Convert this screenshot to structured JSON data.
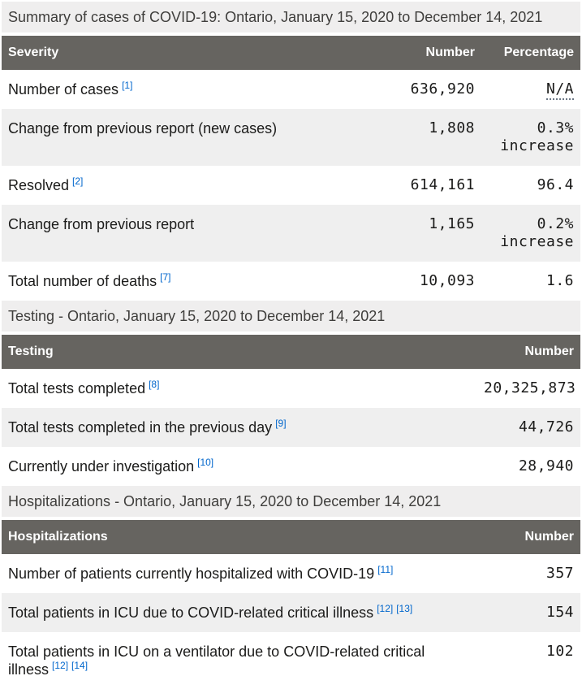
{
  "colors": {
    "header_bg": "#666460",
    "header_text": "#ffffff",
    "zebra_bg": "#efefef",
    "caption_bg": "#efeeee",
    "caption_text": "#3f3e3c",
    "body_text": "#1b1b1a",
    "link": "#0066cc"
  },
  "tables": [
    {
      "caption": "Summary of cases of COVID-19: Ontario, January 15, 2020 to December 14, 2021",
      "columns": [
        "Severity",
        "Number",
        "Percentage"
      ],
      "rows": [
        {
          "label": "Number of cases",
          "footnotes": [
            "[1]"
          ],
          "number": "636,920",
          "percentage": "N/A"
        },
        {
          "label": "Change from previous report (new cases)",
          "footnotes": [],
          "number": "1,808",
          "percentage": "0.3% increase"
        },
        {
          "label": "Resolved",
          "footnotes": [
            "[2]"
          ],
          "number": "614,161",
          "percentage": "96.4"
        },
        {
          "label": "Change from previous report",
          "footnotes": [],
          "number": "1,165",
          "percentage": "0.2% increase"
        },
        {
          "label": "Total number of deaths",
          "footnotes": [
            "[7]"
          ],
          "number": "10,093",
          "percentage": "1.6"
        }
      ]
    },
    {
      "caption": "Testing - Ontario, January 15, 2020 to December 14, 2021",
      "columns": [
        "Testing",
        "Number"
      ],
      "rows": [
        {
          "label": "Total tests completed",
          "footnotes": [
            "[8]"
          ],
          "number": "20,325,873"
        },
        {
          "label": "Total tests completed in the previous day",
          "footnotes": [
            "[9]"
          ],
          "number": "44,726"
        },
        {
          "label": "Currently under investigation",
          "footnotes": [
            "[10]"
          ],
          "number": "28,940"
        }
      ]
    },
    {
      "caption": "Hospitalizations - Ontario, January 15, 2020 to December 14, 2021",
      "columns": [
        "Hospitalizations",
        "Number"
      ],
      "rows": [
        {
          "label": "Number of patients currently hospitalized with COVID-19",
          "footnotes": [
            "[11]"
          ],
          "number": "357"
        },
        {
          "label": "Total patients in ICU due to COVID-related critical illness",
          "footnotes": [
            "[12]",
            "[13]"
          ],
          "number": "154"
        },
        {
          "label": "Total patients in ICU on a ventilator due to COVID-related critical illness",
          "footnotes": [
            "[12]",
            "[14]"
          ],
          "number": "102"
        }
      ]
    }
  ]
}
